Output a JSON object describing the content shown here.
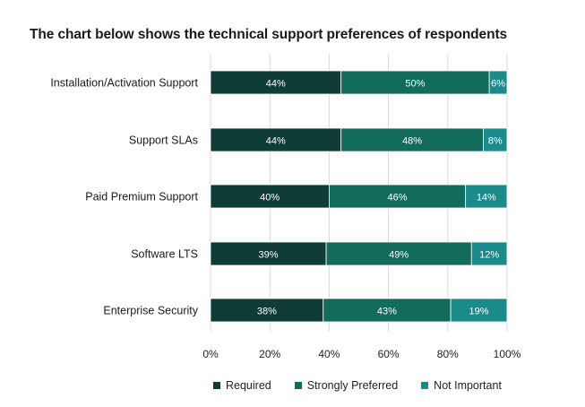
{
  "title": "The chart below shows the technical support preferences of respondents",
  "chart_data": {
    "type": "bar",
    "orientation": "horizontal",
    "stacked": true,
    "categories": [
      "Installation/Activation Support",
      "Support SLAs",
      "Paid Premium Support",
      "Software LTS",
      "Enterprise Security"
    ],
    "series": [
      {
        "name": "Required",
        "values": [
          44,
          44,
          40,
          39,
          38
        ],
        "labels": [
          "44%",
          "44%",
          "40%",
          "39%",
          "38%"
        ],
        "color": "#0f3d35"
      },
      {
        "name": "Strongly Preferred",
        "values": [
          50,
          48,
          46,
          49,
          43
        ],
        "labels": [
          "50%",
          "48%",
          "46%",
          "49%",
          "43%"
        ],
        "color": "#136b5c"
      },
      {
        "name": "Not Important",
        "values": [
          6,
          8,
          14,
          12,
          19
        ],
        "labels": [
          "6%",
          "8%",
          "14%",
          "12%",
          "19%"
        ],
        "color": "#1a8a8a"
      }
    ],
    "xlim": [
      0,
      100
    ],
    "xticks": [
      "0%",
      "20%",
      "40%",
      "60%",
      "80%",
      "100%"
    ],
    "grid": true,
    "legend_position": "bottom"
  }
}
